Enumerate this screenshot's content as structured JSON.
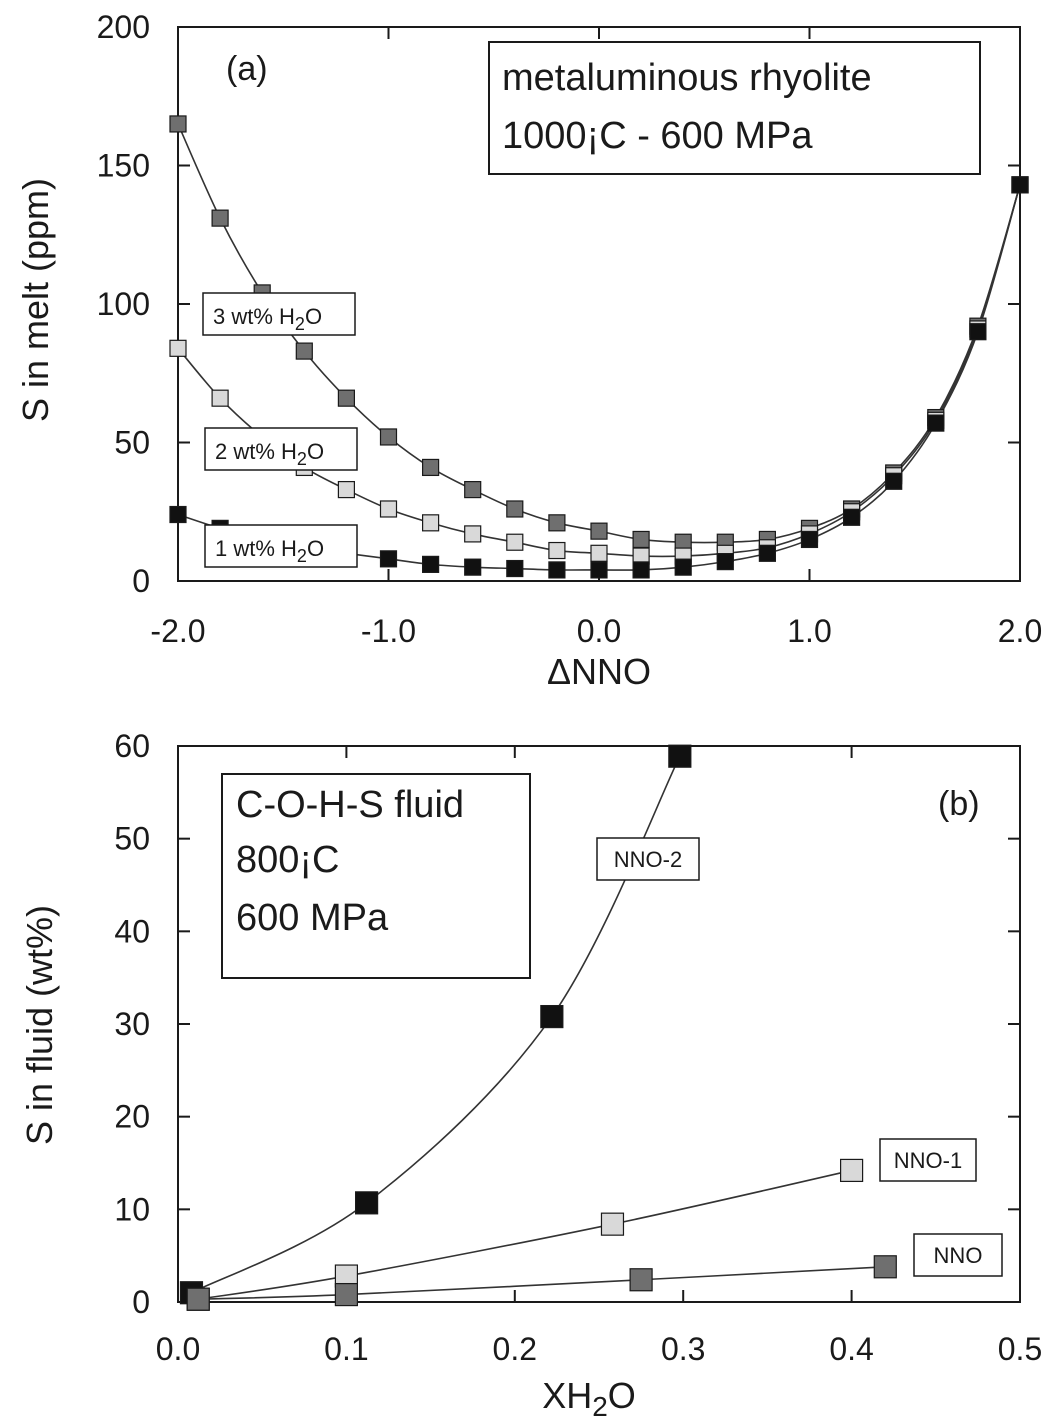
{
  "colors": {
    "black": "#111111",
    "gray": "#6f6f6f",
    "light": "#d9d9d9",
    "line": "#333333"
  },
  "chart_data": [
    {
      "type": "line",
      "panel_tag": "(a)",
      "info_lines": [
        "metaluminous rhyolite",
        "1000¡C - 600 MPa"
      ],
      "xlabel": "ΔNNO",
      "ylabel": "S in melt (ppm)",
      "xlim": [
        -2.0,
        2.0
      ],
      "ylim": [
        0,
        200
      ],
      "x_ticks": [
        -2.0,
        -1.0,
        0.0,
        1.0,
        2.0
      ],
      "x_tick_labels": [
        "-2.0",
        "-1.0",
        "0.0",
        "1.0",
        "2.0"
      ],
      "y_ticks": [
        0,
        50,
        100,
        150,
        200
      ],
      "y_tick_labels": [
        "0",
        "50",
        "100",
        "150",
        "200"
      ],
      "series": [
        {
          "name": "3 wt% H2O",
          "label_main": "3 wt% H",
          "label_sub": "2",
          "label_tail": "O",
          "marker": "gray",
          "x": [
            -2.0,
            -1.8,
            -1.6,
            -1.4,
            -1.2,
            -1.0,
            -0.8,
            -0.6,
            -0.4,
            -0.2,
            0.0,
            0.2,
            0.4,
            0.6,
            0.8,
            1.0,
            1.2,
            1.4,
            1.6,
            1.8,
            2.0
          ],
          "y": [
            165,
            131,
            104,
            83,
            66,
            52,
            41,
            33,
            26,
            21,
            18,
            15,
            14,
            14,
            15,
            19,
            26,
            39,
            59,
            92,
            143
          ]
        },
        {
          "name": "2 wt% H2O",
          "label_main": "2 wt% H",
          "label_sub": "2",
          "label_tail": "O",
          "marker": "light",
          "x": [
            -2.0,
            -1.8,
            -1.6,
            -1.4,
            -1.2,
            -1.0,
            -0.8,
            -0.6,
            -0.4,
            -0.2,
            0.0,
            0.2,
            0.4,
            0.6,
            0.8,
            1.0,
            1.2,
            1.4,
            1.6,
            1.8,
            2.0
          ],
          "y": [
            84,
            66,
            52,
            41,
            33,
            26,
            21,
            17,
            14,
            11,
            10,
            9,
            9,
            10,
            12,
            17,
            25,
            38,
            58,
            91,
            143
          ]
        },
        {
          "name": "1 wt% H2O",
          "label_main": "1 wt% H",
          "label_sub": "2",
          "label_tail": "O",
          "marker": "black",
          "x": [
            -2.0,
            -1.8,
            -1.6,
            -1.4,
            -1.2,
            -1.0,
            -0.8,
            -0.6,
            -0.4,
            -0.2,
            0.0,
            0.2,
            0.4,
            0.6,
            0.8,
            1.0,
            1.2,
            1.4,
            1.6,
            1.8,
            2.0
          ],
          "y": [
            24,
            19,
            15,
            12,
            10,
            8,
            6,
            5,
            4.5,
            4,
            4,
            4,
            5,
            7,
            10,
            15,
            23,
            36,
            57,
            90,
            143
          ]
        }
      ]
    },
    {
      "type": "line",
      "panel_tag": "(b)",
      "info_lines": [
        "C-O-H-S fluid",
        "800¡C",
        "600 MPa"
      ],
      "xlabel_main": "XH",
      "xlabel_sub": "2",
      "xlabel_tail": "O",
      "ylabel": "S in fluid (wt%)",
      "xlim": [
        0,
        0.5
      ],
      "ylim": [
        0,
        60
      ],
      "x_ticks": [
        0.0,
        0.1,
        0.2,
        0.3,
        0.4,
        0.5
      ],
      "x_tick_labels": [
        "0.0",
        "0.1",
        "0.2",
        "0.3",
        "0.4",
        "0.5"
      ],
      "y_ticks": [
        0,
        10,
        20,
        30,
        40,
        50,
        60
      ],
      "y_tick_labels": [
        "0",
        "10",
        "20",
        "30",
        "40",
        "50",
        "60"
      ],
      "series": [
        {
          "name": "NNO-2",
          "marker": "black",
          "x": [
            0.008,
            0.112,
            0.222,
            0.298
          ],
          "y": [
            1.0,
            10.7,
            30.8,
            58.9
          ]
        },
        {
          "name": "NNO-1",
          "marker": "light",
          "x": [
            0.012,
            0.1,
            0.258,
            0.4
          ],
          "y": [
            0.3,
            2.8,
            8.4,
            14.2
          ]
        },
        {
          "name": "NNO",
          "marker": "gray",
          "x": [
            0.012,
            0.1,
            0.275,
            0.42
          ],
          "y": [
            0.3,
            0.8,
            2.4,
            3.8
          ]
        }
      ]
    }
  ]
}
